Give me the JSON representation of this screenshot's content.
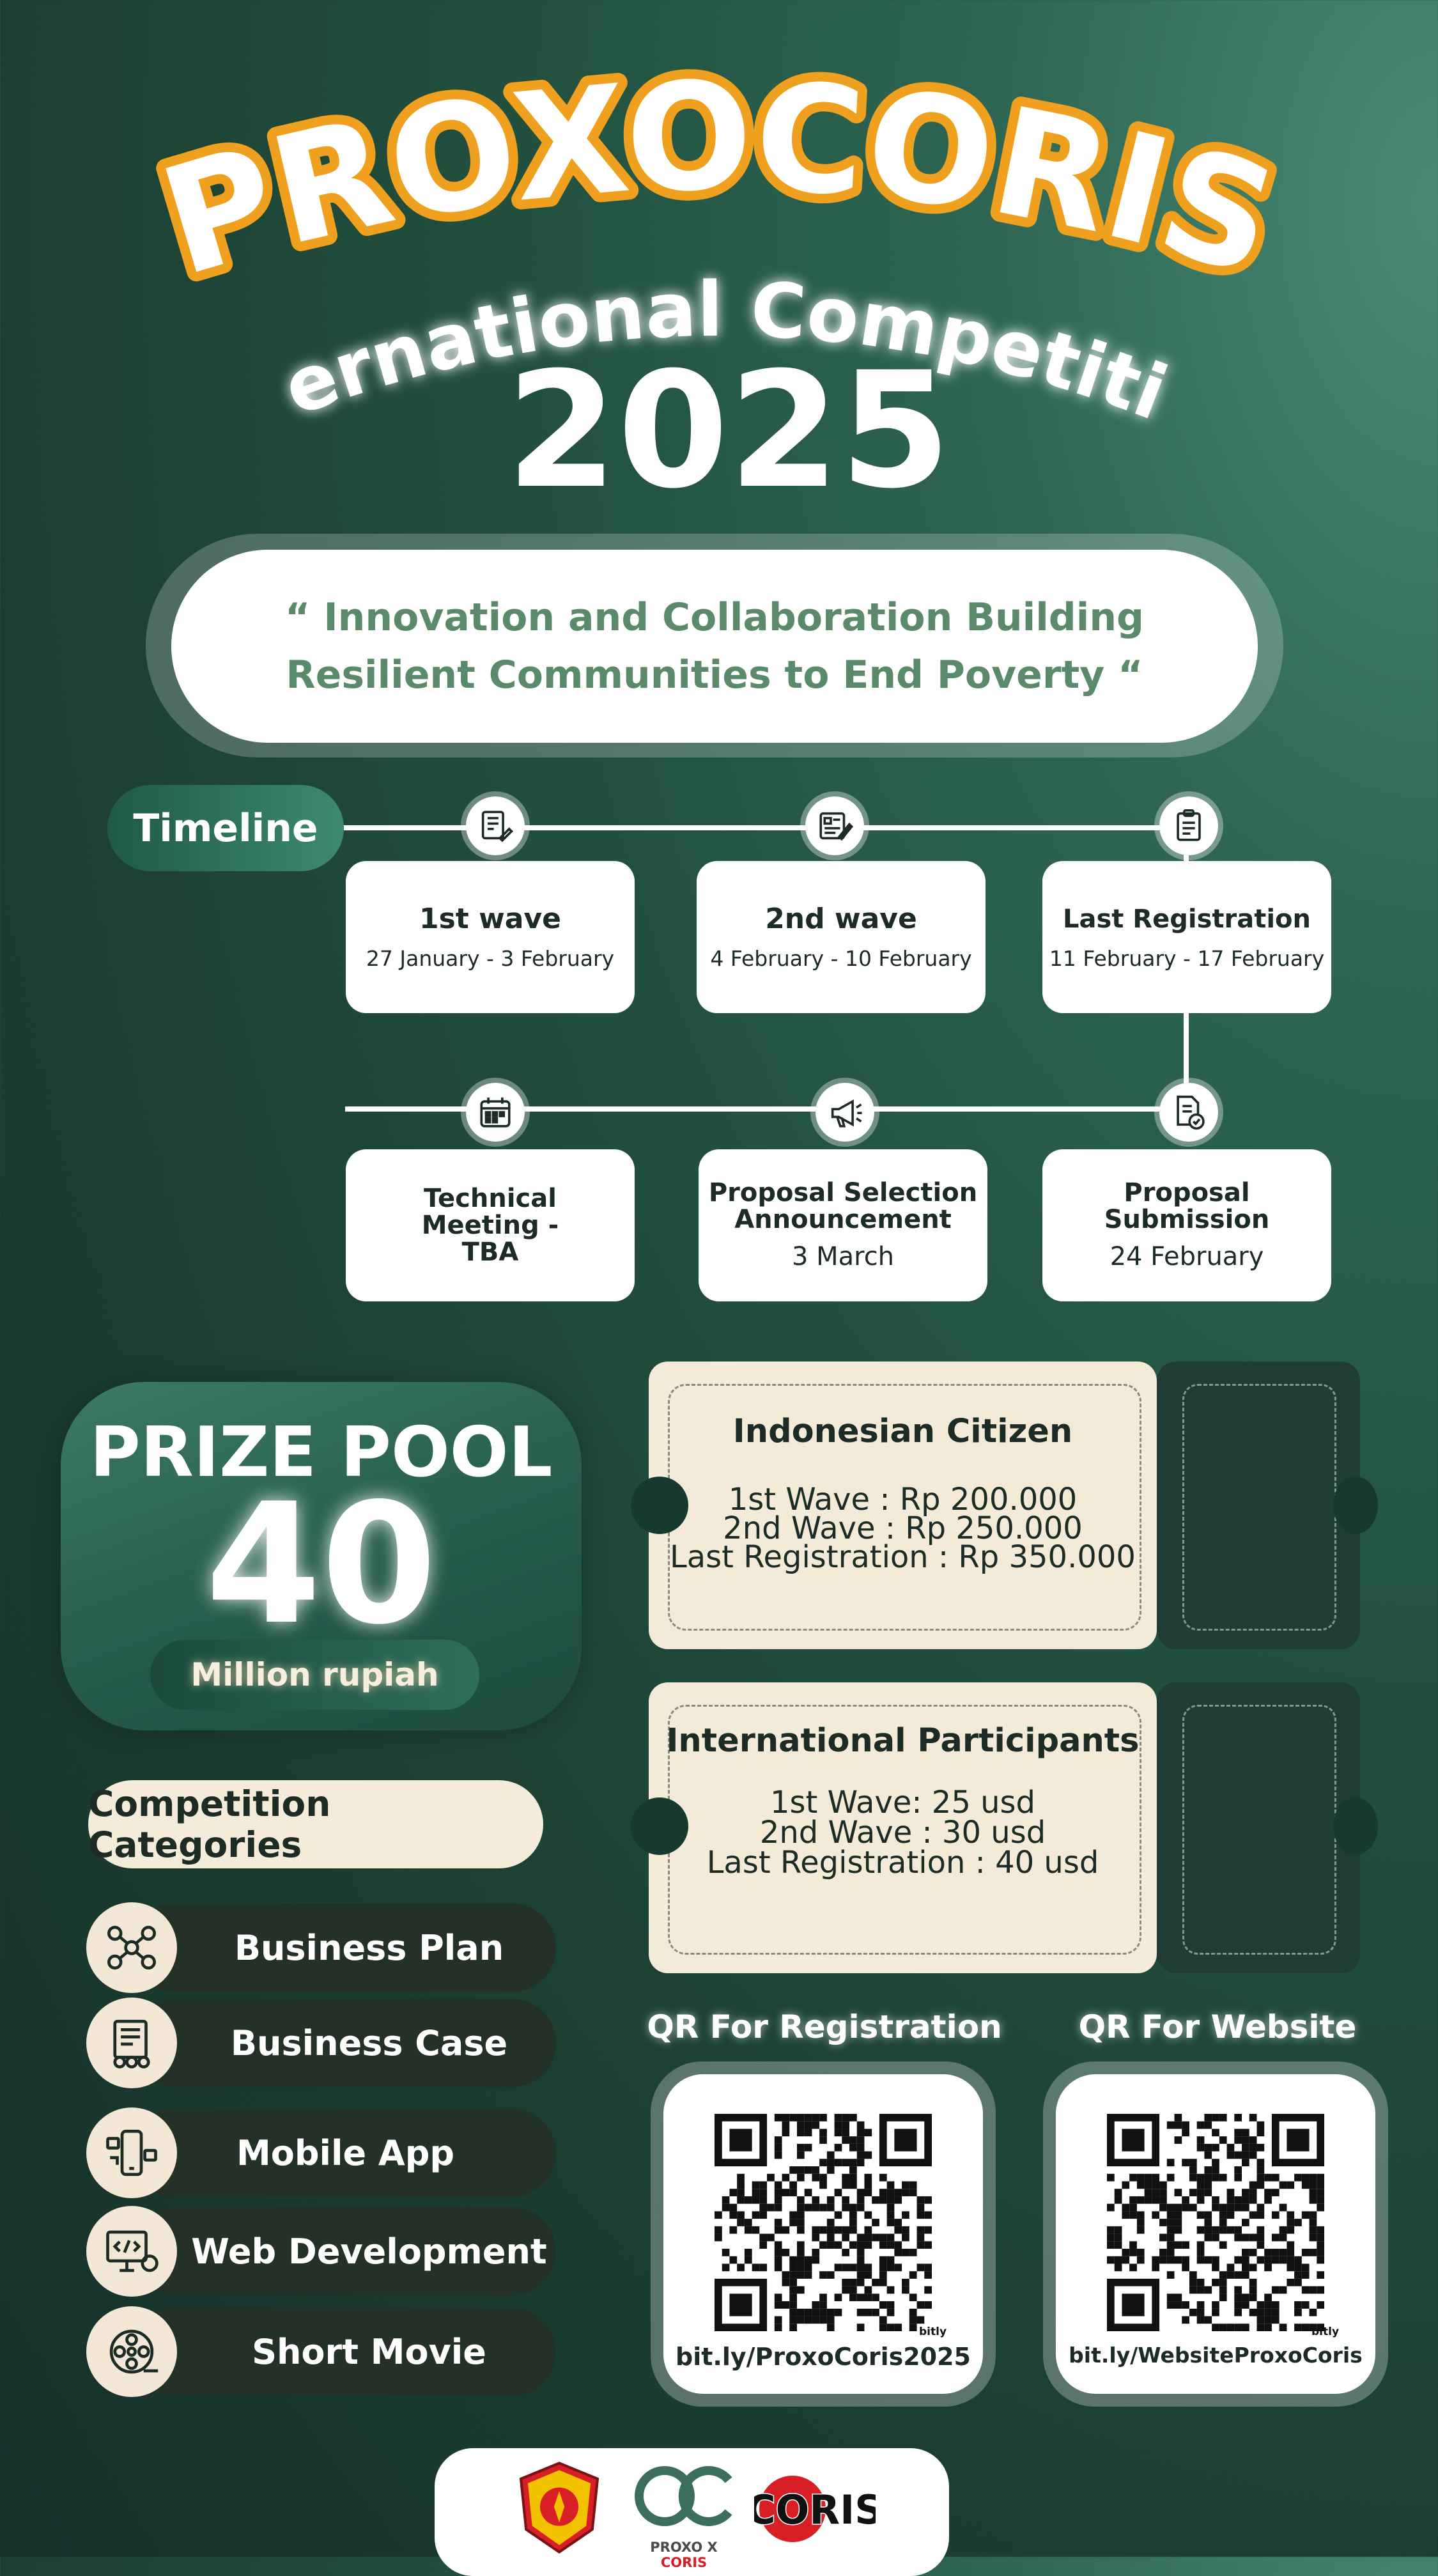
{
  "title": {
    "main": "PROXOCORIS",
    "subtitle": "International Competition",
    "year": "2025"
  },
  "slogan": "“ Innovation and Collaboration Building Resilient Communities to End Poverty “",
  "timeline": {
    "label": "Timeline",
    "items": [
      {
        "title": "1st wave",
        "date": "27 January - 3 February",
        "icon": "checklist-pen-icon"
      },
      {
        "title": "2nd wave",
        "date": "4 February - 10 February",
        "icon": "form-pencil-icon"
      },
      {
        "title": "Last Registration",
        "date": "11 February - 17 February",
        "icon": "clipboard-list-icon"
      },
      {
        "title": "Proposal Submission",
        "date": "24 February",
        "icon": "document-check-icon"
      },
      {
        "title": "Proposal Selection Announcement",
        "date": "3 March",
        "icon": "megaphone-icon"
      },
      {
        "title": "Technical Meeting - TBA",
        "date": "",
        "icon": "calendar-icon"
      }
    ]
  },
  "prize_pool": {
    "title": "PRIZE POOL",
    "amount": "40",
    "unit": "Million rupiah"
  },
  "fees": [
    {
      "title": "Indonesian Citizen",
      "lines": [
        "1st Wave : Rp 200.000",
        "2nd Wave : Rp 250.000",
        "Last Registration : Rp 350.000"
      ]
    },
    {
      "title": "International Participants",
      "lines": [
        "1st Wave: 25 usd",
        "2nd Wave : 30 usd",
        "Last Registration : 40 usd"
      ]
    }
  ],
  "categories": {
    "header": "Competition Categories",
    "items": [
      {
        "label": "Business Plan",
        "icon": "business-plan-icon"
      },
      {
        "label": "Business Case",
        "icon": "business-case-icon"
      },
      {
        "label": "Mobile App",
        "icon": "mobile-app-icon"
      },
      {
        "label": "Web Development",
        "icon": "web-development-icon"
      },
      {
        "label": "Short Movie",
        "icon": "film-reel-icon"
      }
    ]
  },
  "qr": {
    "registration": {
      "label": "QR For Registration",
      "url": "bit.ly/ProxoCoris2025",
      "badge": "bitly"
    },
    "website": {
      "label": "QR For Website",
      "url": "bit.ly/WebsiteProxoCoris",
      "badge": "bitly"
    }
  },
  "footer": {
    "logos": [
      "university-seal-logo",
      "proxo-logo",
      "coris-logo"
    ],
    "caption_prefix": "PROXO X ",
    "caption_brand": "CORIS",
    "coris_wordmark": "CORIS"
  },
  "colors": {
    "accent_orange": "#f0a01f",
    "slogan_green": "#5b8a6a",
    "background_dark": "#1c3f32",
    "cream": "#f4ead8",
    "brand_red": "#d81f26"
  }
}
